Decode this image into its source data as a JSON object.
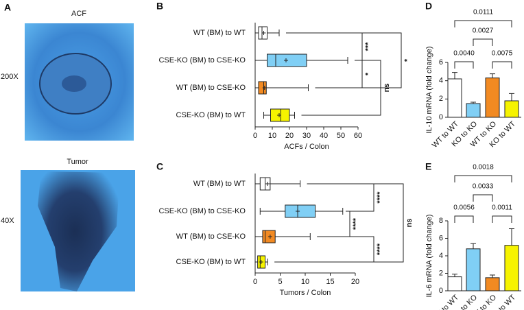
{
  "panel_a": {
    "letter": "A",
    "images": [
      {
        "title": "ACF",
        "magnification": "200X"
      },
      {
        "title": "Tumor",
        "magnification": "40X"
      }
    ]
  },
  "chart_data": [
    {
      "type": "box",
      "panel": "B",
      "orientation": "horizontal",
      "categories": [
        "WT (BM) to WT",
        "CSE-KO (BM) to CSE-KO",
        "WT (BM) to CSE-KO",
        "CSE-KO (BM) to WT"
      ],
      "min": [
        0,
        0,
        0,
        5
      ],
      "q1": [
        2,
        7,
        2,
        9
      ],
      "median": [
        4,
        12,
        5,
        15
      ],
      "q3": [
        7,
        30,
        6.5,
        20
      ],
      "max": [
        14,
        54,
        31,
        23
      ],
      "mean": [
        5,
        18,
        5.5,
        14
      ],
      "colors": [
        "#ffffff",
        "#80cff5",
        "#f28a22",
        "#f6f300"
      ],
      "xlabel": "ACFs / Colon",
      "xlim": [
        0,
        60
      ],
      "xticks": [
        0,
        10,
        20,
        30,
        40,
        50,
        60
      ],
      "comparisons": [
        "***",
        "*",
        "ns",
        "*"
      ]
    },
    {
      "type": "box",
      "panel": "C",
      "orientation": "horizontal",
      "categories": [
        "WT (BM) to WT",
        "CSE-KO (BM) to CSE-KO",
        "WT (BM) to CSE-KO",
        "CSE-KO (BM) to WT"
      ],
      "min": [
        0,
        1,
        0,
        0
      ],
      "q1": [
        1,
        6,
        1.5,
        0.5
      ],
      "median": [
        2,
        8.5,
        2,
        1
      ],
      "q3": [
        3,
        12,
        4,
        2
      ],
      "max": [
        9,
        17.5,
        11,
        2.5
      ],
      "mean": [
        2.5,
        8.5,
        3,
        1.2
      ],
      "colors": [
        "#ffffff",
        "#80cff5",
        "#f28a22",
        "#f6f300"
      ],
      "xlabel": "Tumors / Colon",
      "xlim": [
        0,
        20
      ],
      "xticks": [
        0,
        5,
        10,
        15,
        20
      ],
      "comparisons": [
        "****",
        "****",
        "****",
        "ns"
      ]
    },
    {
      "type": "bar",
      "panel": "D",
      "ylabel": "IL-10 mRNA (fold change)",
      "categories": [
        "WT to WT",
        "KO to KO",
        "WT to KO",
        "KO to WT"
      ],
      "values": [
        4.2,
        1.5,
        4.3,
        1.8
      ],
      "errors": [
        0.7,
        0.15,
        0.45,
        0.8
      ],
      "colors": [
        "#ffffff",
        "#80cff5",
        "#f28a22",
        "#f6f300"
      ],
      "ylim": [
        0,
        6
      ],
      "yticks": [
        0,
        2,
        4,
        6
      ],
      "comparisons": [
        "0.0111",
        "0.0027",
        "0.0040",
        "0.0075"
      ]
    },
    {
      "type": "bar",
      "panel": "E",
      "ylabel": "IL-6 mRNA (fold change)",
      "categories": [
        "WT to WT",
        "KO to KO",
        "WT to KO",
        "KO to WT"
      ],
      "values": [
        1.6,
        4.8,
        1.5,
        5.2
      ],
      "errors": [
        0.3,
        0.6,
        0.3,
        1.9
      ],
      "colors": [
        "#ffffff",
        "#80cff5",
        "#f28a22",
        "#f6f300"
      ],
      "ylim": [
        0,
        8
      ],
      "yticks": [
        0,
        2,
        4,
        6,
        8
      ],
      "comparisons": [
        "0.0018",
        "0.0033",
        "0.0056",
        "0.0011"
      ]
    }
  ]
}
